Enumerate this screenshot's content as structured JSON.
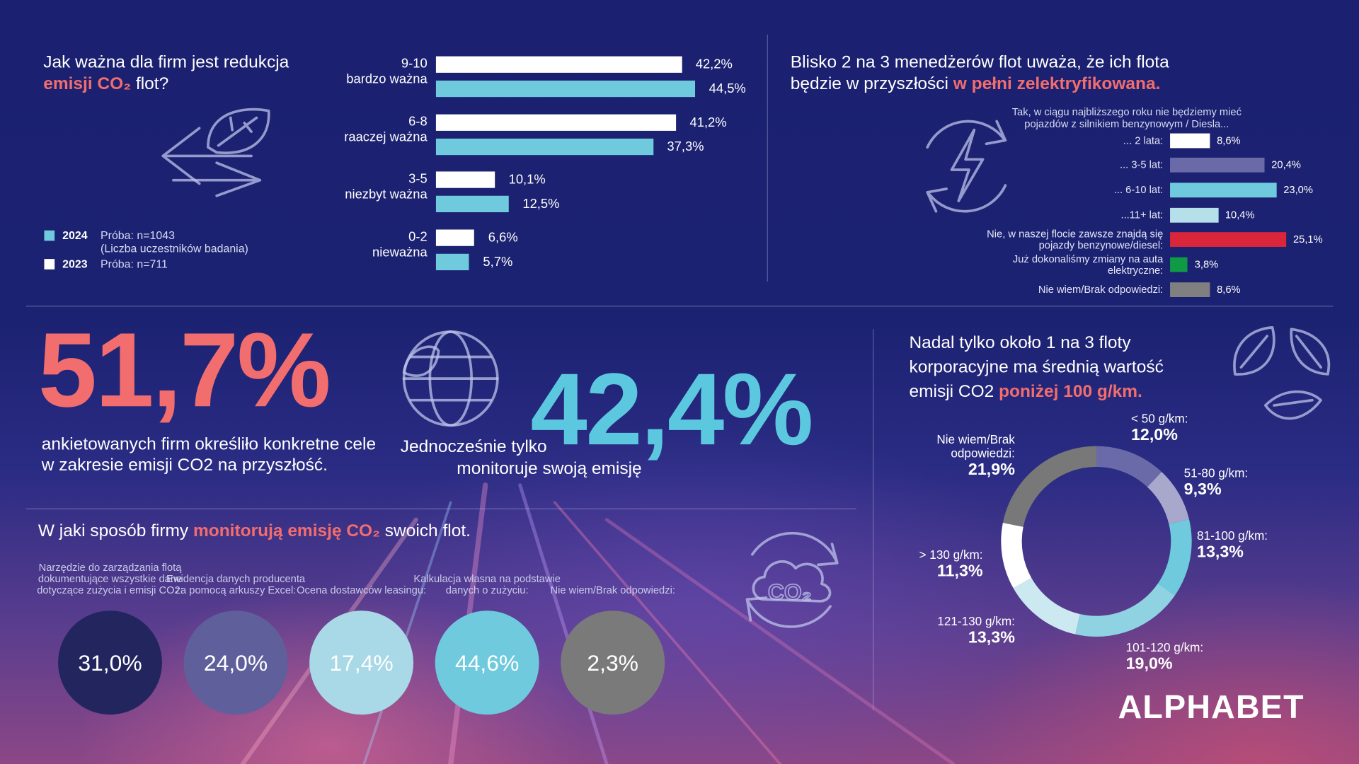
{
  "chart_data": [
    {
      "type": "bar",
      "orientation": "horizontal",
      "title": "Jak ważna dla firm jest redukcja",
      "title_highlight": "emisji CO₂",
      "title_end": "flot?",
      "categories": [
        "9-10",
        "6-8",
        "3-5",
        "0-2"
      ],
      "category_descriptions": [
        "bardzo ważna",
        "raaczej ważna",
        "niezbyt ważna",
        "nieważna"
      ],
      "series": [
        {
          "name": "2023",
          "sample": "Próba: n=711",
          "color": "#ffffff",
          "values": [
            42.2,
            41.2,
            10.1,
            6.6
          ],
          "value_labels": [
            "42,2%",
            "41,2%",
            "10,1%",
            "6,6%"
          ]
        },
        {
          "name": "2024",
          "sample": "Próba: n=1043",
          "sample_note": "(Liczba uczestników badania)",
          "color": "#6ecadc",
          "values": [
            44.5,
            37.3,
            12.5,
            5.7
          ],
          "value_labels": [
            "44,5%",
            "37,3%",
            "12,5%",
            "5,7%"
          ]
        }
      ]
    },
    {
      "type": "bar",
      "orientation": "horizontal",
      "title": "Blisko 2 na 3 menedżerów flot uważa, że ich flota będzie w przyszłości",
      "title_highlight": "w pełni zelektryfikowana.",
      "subtitle": "Tak, w ciągu najbliższego roku nie będziemy mieć pojazdów z silnikiem benzynowym / Diesla...",
      "categories": [
        "... 2 lata:",
        "... 3-5 lat:",
        "... 6-10 lat:",
        "...11+ lat:",
        "Nie, w naszej flocie zawsze znajdą się pojazdy benzynowe/diesel:",
        "Już dokonaliśmy zmiany na auta elektryczne:",
        "Nie wiem/Brak odpowiedzi:"
      ],
      "colors": [
        "#ffffff",
        "#6a6aa8",
        "#6ecadc",
        "#b5e0ea",
        "#d9263a",
        "#0f9a45",
        "#808080"
      ],
      "values": [
        8.6,
        20.4,
        23.0,
        10.4,
        25.1,
        3.8,
        8.6
      ],
      "value_labels": [
        "8,6%",
        "20,4%",
        "23,0%",
        "10,4%",
        "25,1%",
        "3,8%",
        "8,6%"
      ]
    },
    {
      "type": "bubble",
      "title": "W jaki sposób firmy",
      "title_highlight": "monitorują emisję CO₂",
      "title_end": "swoich flot.",
      "categories": [
        "Narzędzie do zarządzania flotą dokumentujące wszystkie dane dotyczące zużycia i emisji CO2:",
        "Ewidencja danych producenta za pomocą arkuszy Excel:",
        "Ocena dostawców leasingu:",
        "Kalkulacja własna na podstawie danych o zużyciu:",
        "Nie wiem/Brak odpowiedzi:"
      ],
      "colors": [
        "#23265e",
        "#5f5f9c",
        "#a9d8e6",
        "#6ecadc",
        "#7a7a7a"
      ],
      "values": [
        31.0,
        24.0,
        17.4,
        44.6,
        2.3
      ],
      "value_labels": [
        "31,0%",
        "24,0%",
        "17,4%",
        "44,6%",
        "2,3%"
      ]
    },
    {
      "type": "donut",
      "title": "Nadal tylko około 1 na 3 floty korporacyjne ma średnią wartość emisji CO2",
      "title_highlight": "poniżej 100 g/km.",
      "categories": [
        "< 50 g/km:",
        "51-80 g/km:",
        "81-100 g/km:",
        "101-120 g/km:",
        "121-130 g/km:",
        "> 130 g/km:",
        "Nie wiem/Brak odpowiedzi:"
      ],
      "colors": [
        "#6a6aa8",
        "#a8a8cc",
        "#6ecadc",
        "#8fd2e2",
        "#cce9f1",
        "#ffffff",
        "#787878"
      ],
      "values": [
        12.0,
        9.3,
        13.3,
        19.0,
        13.3,
        11.3,
        21.9
      ],
      "value_labels": [
        "12,0%",
        "9,3%",
        "13,3%",
        "19,0%",
        "13,3%",
        "11,3%",
        "21,9%"
      ]
    }
  ],
  "stats": [
    {
      "value": "51,7%",
      "text": "ankietowanych firm określiło konkretne cele w zakresie emisji CO2 na przyszłość."
    },
    {
      "value": "42,4%",
      "text_before": "Jednocześnie tylko",
      "text_after": "monitoruje swoją emisję"
    }
  ],
  "logo": "ALPHABET"
}
